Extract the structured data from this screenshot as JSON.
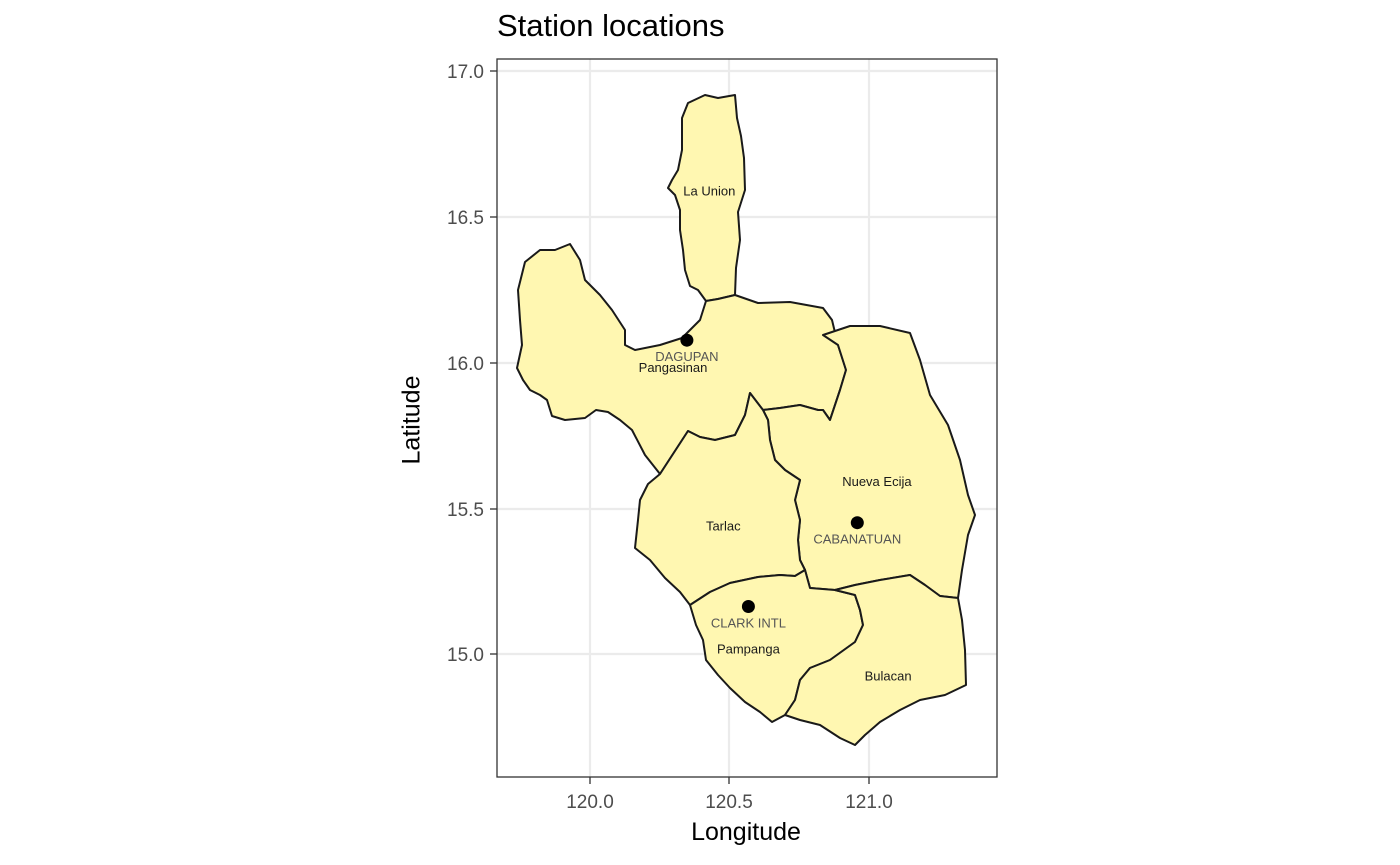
{
  "title": "Station locations",
  "axes": {
    "x_label": "Longitude",
    "y_label": "Latitude",
    "x_ticks": [
      "120.0",
      "120.5",
      "121.0"
    ],
    "y_ticks": [
      "17.0",
      "16.5",
      "16.0",
      "15.5",
      "15.0"
    ]
  },
  "chart_data": {
    "type": "map",
    "xlim": [
      119.66,
      121.45
    ],
    "ylim": [
      14.62,
      17.02
    ],
    "grid": true,
    "fill_color": "#fff7b1",
    "border_color": "#1a1a1a",
    "provinces": [
      {
        "name": "La Union",
        "label_lon": 120.42,
        "label_lat": 16.58
      },
      {
        "name": "Pangasinan",
        "label_lon": 120.29,
        "label_lat": 15.99
      },
      {
        "name": "Nueva Ecija",
        "label_lon": 121.02,
        "label_lat": 15.61
      },
      {
        "name": "Tarlac",
        "label_lon": 120.47,
        "label_lat": 15.46
      },
      {
        "name": "Pampanga",
        "label_lon": 120.56,
        "label_lat": 15.05
      },
      {
        "name": "Bulacan",
        "label_lon": 121.06,
        "label_lat": 14.96
      }
    ],
    "stations": [
      {
        "name": "DAGUPAN",
        "lon": 120.34,
        "lat": 16.08
      },
      {
        "name": "CABANATUAN",
        "lon": 120.95,
        "lat": 15.47
      },
      {
        "name": "CLARK INTL",
        "lon": 120.56,
        "lat": 15.19
      }
    ]
  }
}
